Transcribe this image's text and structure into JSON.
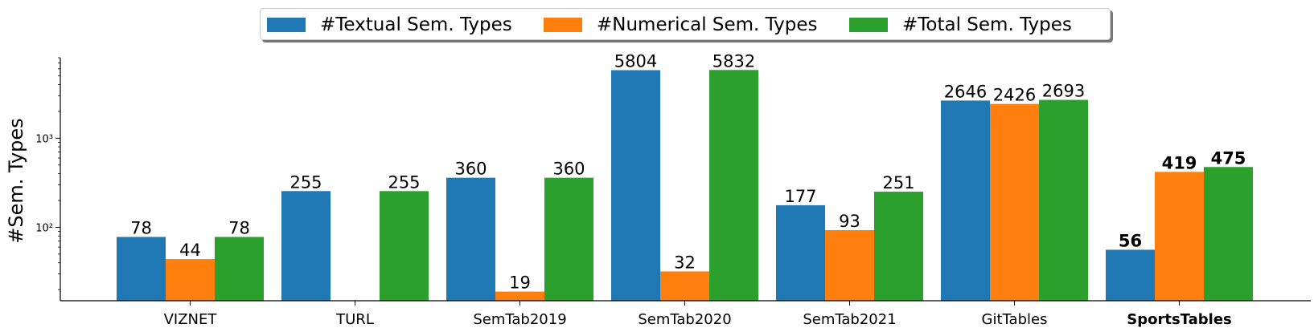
{
  "chart_data": {
    "type": "bar",
    "title": "",
    "xlabel": "",
    "ylabel": "#Sem. Types",
    "yscale": "log",
    "ylim": [
      15,
      8000
    ],
    "y_ticks": [
      {
        "value": 100,
        "label": "10²"
      },
      {
        "value": 1000,
        "label": "10³"
      }
    ],
    "grid": false,
    "legend_position": "top-center",
    "categories": [
      "VIZNET",
      "TURL",
      "SemTab2019",
      "SemTab2020",
      "SemTab2021",
      "GitTables",
      "SportsTables"
    ],
    "bold_category": "SportsTables",
    "series": [
      {
        "name": "#Textual Sem. Types",
        "color": "#1f77b4",
        "values": [
          78,
          255,
          360,
          5804,
          177,
          2646,
          56
        ]
      },
      {
        "name": "#Numerical Sem. Types",
        "color": "#ff7f0e",
        "values": [
          44,
          null,
          19,
          32,
          93,
          2426,
          419
        ]
      },
      {
        "name": "#Total Sem. Types",
        "color": "#2ca02c",
        "values": [
          78,
          255,
          360,
          5832,
          251,
          2693,
          475
        ]
      }
    ]
  }
}
